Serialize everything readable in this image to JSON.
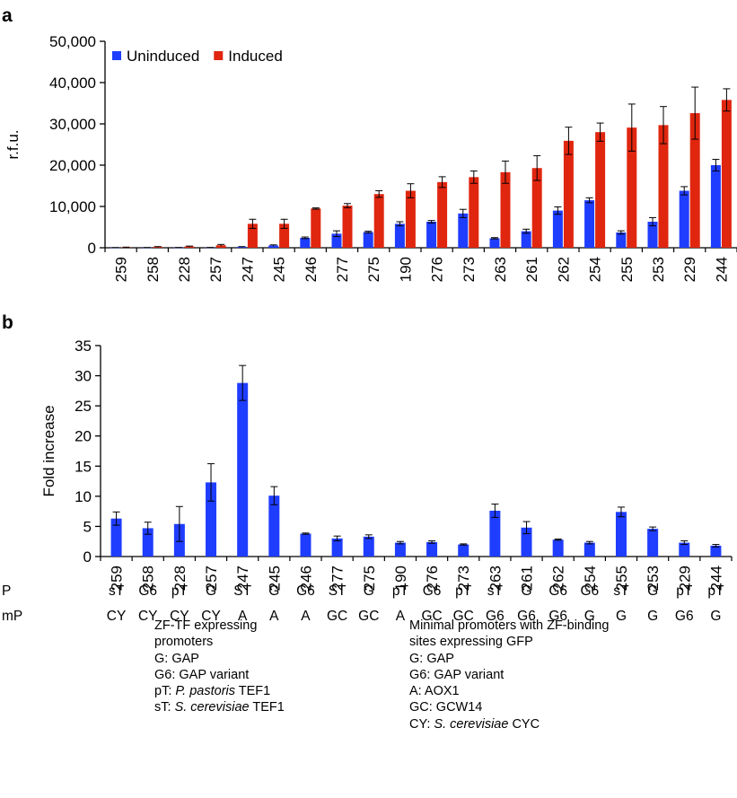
{
  "colors": {
    "uninduced": "#1f3dff",
    "induced": "#e0260f",
    "axis": "#000000"
  },
  "chart_data": [
    {
      "panel_label": "a",
      "type": "bar",
      "ylabel": "r.f.u.",
      "ylim": [
        0,
        50000
      ],
      "yticks": [
        "0",
        "10,000",
        "20,000",
        "30,000",
        "40,000",
        "50,000"
      ],
      "ytick_values": [
        0,
        10000,
        20000,
        30000,
        40000,
        50000
      ],
      "legend_position": "top-left",
      "categories": [
        "259",
        "258",
        "228",
        "257",
        "247",
        "245",
        "246",
        "277",
        "275",
        "190",
        "276",
        "273",
        "263",
        "261",
        "262",
        "254",
        "255",
        "253",
        "229",
        "244"
      ],
      "series": [
        {
          "name": "Uninduced",
          "color": "#1f3dff",
          "values": [
            30,
            40,
            50,
            60,
            200,
            550,
            2400,
            3400,
            3800,
            5800,
            6300,
            8300,
            2300,
            4000,
            9000,
            11500,
            3700,
            6300,
            13800,
            20000
          ],
          "errors": [
            20,
            20,
            20,
            20,
            80,
            150,
            200,
            700,
            200,
            500,
            300,
            1000,
            150,
            500,
            900,
            600,
            400,
            1000,
            1000,
            1400
          ]
        },
        {
          "name": "Induced",
          "color": "#e0260f",
          "values": [
            100,
            200,
            300,
            600,
            5800,
            5800,
            9500,
            10200,
            13000,
            13800,
            15900,
            17100,
            18300,
            19300,
            25900,
            28000,
            29100,
            29700,
            32600,
            35800
          ],
          "errors": [
            50,
            80,
            100,
            200,
            1100,
            1100,
            150,
            500,
            800,
            1700,
            1300,
            1500,
            2700,
            3000,
            3300,
            2200,
            5700,
            4500,
            6300,
            2700
          ]
        }
      ]
    },
    {
      "panel_label": "b",
      "type": "bar",
      "ylabel": "Fold increase",
      "ylim": [
        0,
        35
      ],
      "yticks": [
        "0",
        "5",
        "10",
        "15",
        "20",
        "25",
        "30",
        "35"
      ],
      "ytick_values": [
        0,
        5,
        10,
        15,
        20,
        25,
        30,
        35
      ],
      "categories": [
        "259",
        "258",
        "228",
        "257",
        "247",
        "245",
        "246",
        "277",
        "275",
        "190",
        "276",
        "273",
        "263",
        "261",
        "262",
        "254",
        "255",
        "253",
        "229",
        "244"
      ],
      "series": [
        {
          "color": "#1f3dff",
          "values": [
            6.3,
            4.7,
            5.4,
            12.3,
            28.8,
            10.1,
            3.8,
            3.0,
            3.3,
            2.3,
            2.4,
            2.0,
            7.6,
            4.8,
            2.8,
            2.3,
            7.4,
            4.6,
            2.3,
            1.8
          ],
          "errors": [
            1.1,
            1.0,
            2.9,
            3.1,
            2.9,
            1.5,
            0.1,
            0.4,
            0.3,
            0.2,
            0.2,
            0.1,
            1.1,
            1.0,
            0.1,
            0.2,
            0.8,
            0.3,
            0.3,
            0.2
          ]
        }
      ],
      "row_labels": {
        "p": "P",
        "mp": "mP"
      },
      "p_row": [
        "sT",
        "G6",
        "pT",
        "G",
        "ST",
        "G",
        "G6",
        "ST",
        "G",
        "pT",
        "G6",
        "pT",
        "sT",
        "G",
        "G6",
        "G6",
        "sT",
        "G",
        "pT",
        "pT"
      ],
      "mp_row": [
        "CY",
        "CY",
        "CY",
        "CY",
        "A",
        "A",
        "A",
        "GC",
        "GC",
        "A",
        "GC",
        "GC",
        "G6",
        "G6",
        "G6",
        "G",
        "G",
        "G",
        "G6",
        "G"
      ]
    }
  ],
  "legend_left": {
    "title1": "ZF-TF expressing",
    "title2": "promoters",
    "g": "G:  GAP",
    "g6": "G6: GAP variant",
    "pt_prefix": "pT: ",
    "pt_species": "P. pastoris",
    "pt_suffix": " TEF1",
    "st_prefix": "sT: ",
    "st_species": "S. cerevisiae",
    "st_suffix": " TEF1"
  },
  "legend_right": {
    "title1": "Minimal promoters with ZF-binding",
    "title2": "sites expressing GFP",
    "g": "G:  GAP",
    "g6": "G6: GAP variant",
    "a": "A:  AOX1",
    "gc": "GC: GCW14",
    "cy_prefix": "CY: ",
    "cy_species": "S. cerevisiae",
    "cy_suffix": " CYC"
  }
}
